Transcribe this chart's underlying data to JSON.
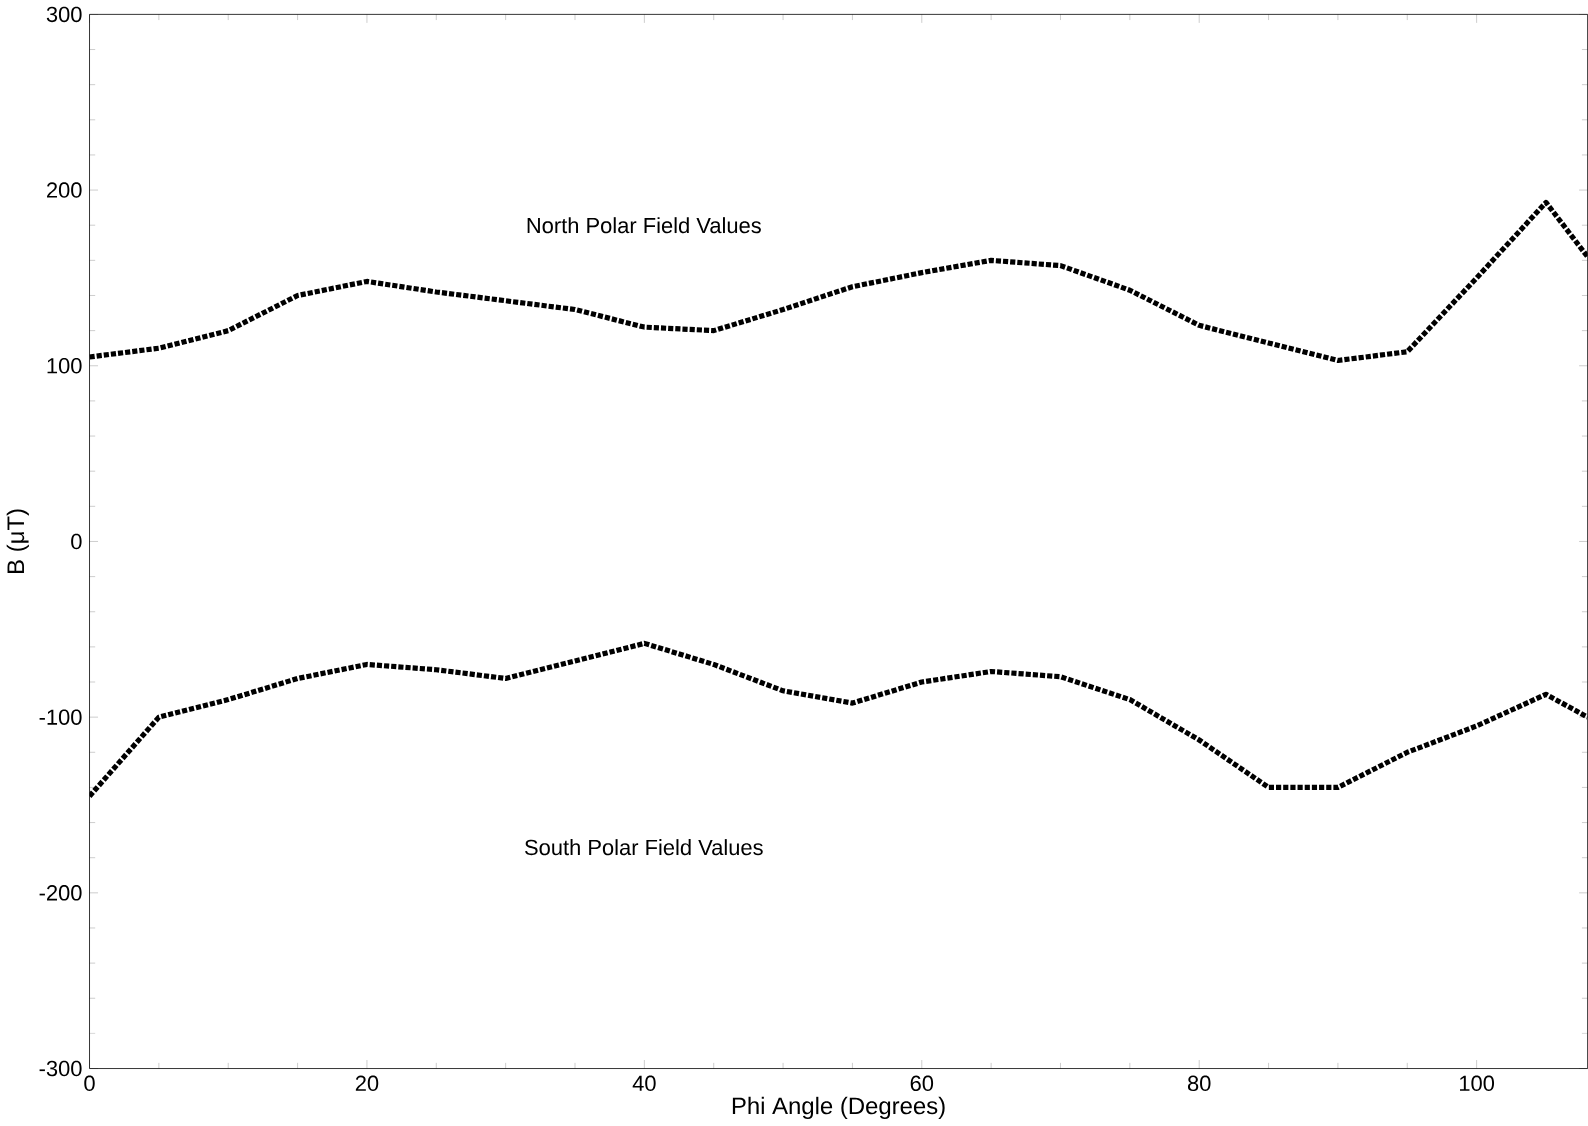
{
  "chart_data": {
    "type": "line",
    "xlabel": "Phi Angle (Degrees)",
    "ylabel": "B (μT)",
    "xlim": [
      0,
      108
    ],
    "ylim": [
      -300,
      300
    ],
    "xticks": [
      0,
      20,
      40,
      60,
      80,
      100
    ],
    "yticks": [
      -300,
      -200,
      -100,
      0,
      100,
      200,
      300
    ],
    "grid": false,
    "line_style": "dotted",
    "marker": "none",
    "annotations": [
      "North Polar Field Values",
      "South Polar Field Values"
    ],
    "series": [
      {
        "color": "#000000",
        "x": [
          0,
          5,
          10,
          15,
          20,
          25,
          30,
          35,
          40,
          45,
          50,
          55,
          60,
          65,
          70,
          75,
          80,
          85,
          90,
          95,
          100,
          105,
          108
        ],
        "values": [
          105,
          110,
          120,
          140,
          148,
          142,
          137,
          132,
          122,
          120,
          132,
          145,
          153,
          160,
          157,
          143,
          123,
          113,
          103,
          108,
          150,
          193,
          162
        ]
      },
      {
        "color": "#000000",
        "x": [
          0,
          5,
          10,
          15,
          20,
          25,
          30,
          35,
          40,
          45,
          50,
          55,
          60,
          65,
          70,
          75,
          80,
          85,
          90,
          95,
          100,
          105,
          108
        ],
        "values": [
          -145,
          -100,
          -90,
          -78,
          -70,
          -73,
          -78,
          -68,
          -58,
          -70,
          -85,
          -92,
          -80,
          -74,
          -77,
          -90,
          -113,
          -140,
          -140,
          -120,
          -105,
          -87,
          -100
        ]
      }
    ]
  }
}
